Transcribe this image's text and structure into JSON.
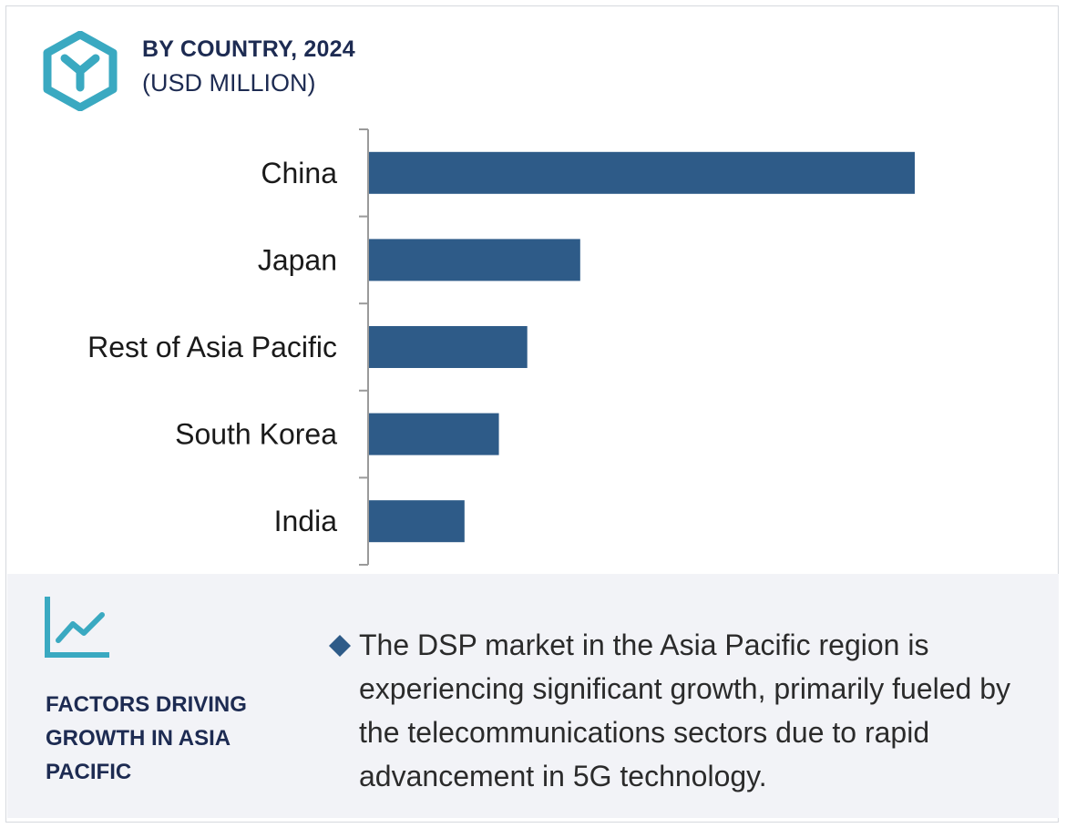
{
  "header": {
    "title": "BY COUNTRY, 2024",
    "subtitle": "(USD MILLION)"
  },
  "colors": {
    "bar": "#2e5b88",
    "accent": "#3aa9c1",
    "title": "#1d2b52",
    "axis": "#9a9a9a"
  },
  "chart_data": {
    "type": "bar",
    "orientation": "horizontal",
    "categories": [
      "China",
      "Japan",
      "Rest of Asia Pacific",
      "South Korea",
      "India"
    ],
    "values": [
      100,
      38.7,
      29,
      23.8,
      17.5
    ],
    "xlim": [
      0,
      100
    ],
    "grid": false,
    "legend": "none"
  },
  "footer": {
    "factors_title": "FACTORS DRIVING GROWTH IN ASIA PACIFIC",
    "description": "The DSP market in the Asia Pacific region is experiencing significant growth, primarily fueled by the telecommunications sectors due to rapid advancement in 5G technology.",
    "icons": [
      "brand-logo-icon",
      "trend-chart-icon",
      "diamond-bullet-icon"
    ]
  }
}
